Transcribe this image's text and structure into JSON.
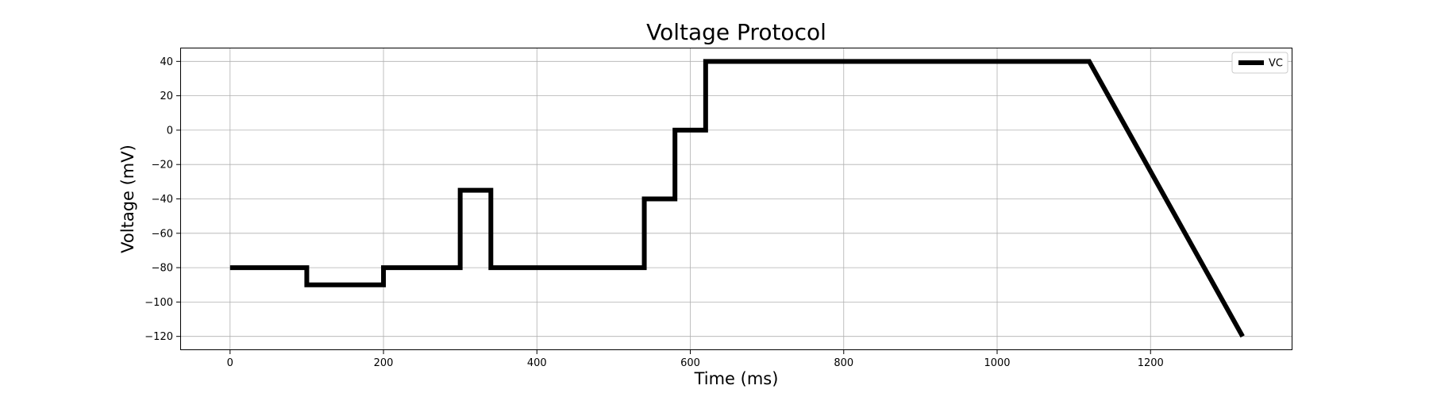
{
  "chart_data": {
    "type": "line",
    "title": "Voltage Protocol",
    "xlabel": "Time (ms)",
    "ylabel": "Voltage (mV)",
    "xlim": [
      -65,
      1385
    ],
    "ylim": [
      -128,
      48
    ],
    "xticks": [
      0,
      200,
      400,
      600,
      800,
      1000,
      1200
    ],
    "yticks": [
      40,
      20,
      0,
      -20,
      -40,
      -60,
      -80,
      -100,
      -120
    ],
    "xtick_labels": [
      "0",
      "200",
      "400",
      "600",
      "800",
      "1000",
      "1200"
    ],
    "ytick_labels": [
      "40",
      "20",
      "0",
      "−20",
      "−40",
      "−60",
      "−80",
      "−100",
      "−120"
    ],
    "grid": true,
    "legend_position": "top-right",
    "series": [
      {
        "name": "VC",
        "color": "#000000",
        "x": [
          0,
          100,
          100,
          200,
          200,
          300,
          300,
          340,
          340,
          540,
          540,
          580,
          580,
          620,
          620,
          1120,
          1320
        ],
        "y": [
          -80,
          -80,
          -90,
          -90,
          -80,
          -80,
          -35,
          -35,
          -80,
          -80,
          -40,
          -40,
          0,
          0,
          40,
          40,
          -120
        ]
      }
    ]
  }
}
